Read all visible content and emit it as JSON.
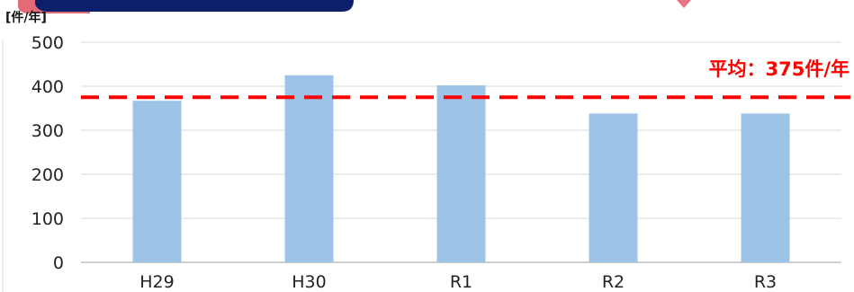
{
  "chart_data": {
    "type": "bar",
    "unit_label": "[件/年]",
    "categories": [
      "H29",
      "H30",
      "R1",
      "R2",
      "R3"
    ],
    "values": [
      367,
      425,
      402,
      338,
      338
    ],
    "ylim": [
      0,
      500
    ],
    "yticks": [
      "0",
      "100",
      "200",
      "300",
      "400",
      "500"
    ],
    "grid": true,
    "average": {
      "value": 375,
      "label": "平均：375件/年"
    },
    "colors": {
      "bar": "#9dc3e6",
      "average_line": "#ff0000",
      "grid": "#d9d9d9",
      "axis": "#bfbfbf"
    }
  }
}
